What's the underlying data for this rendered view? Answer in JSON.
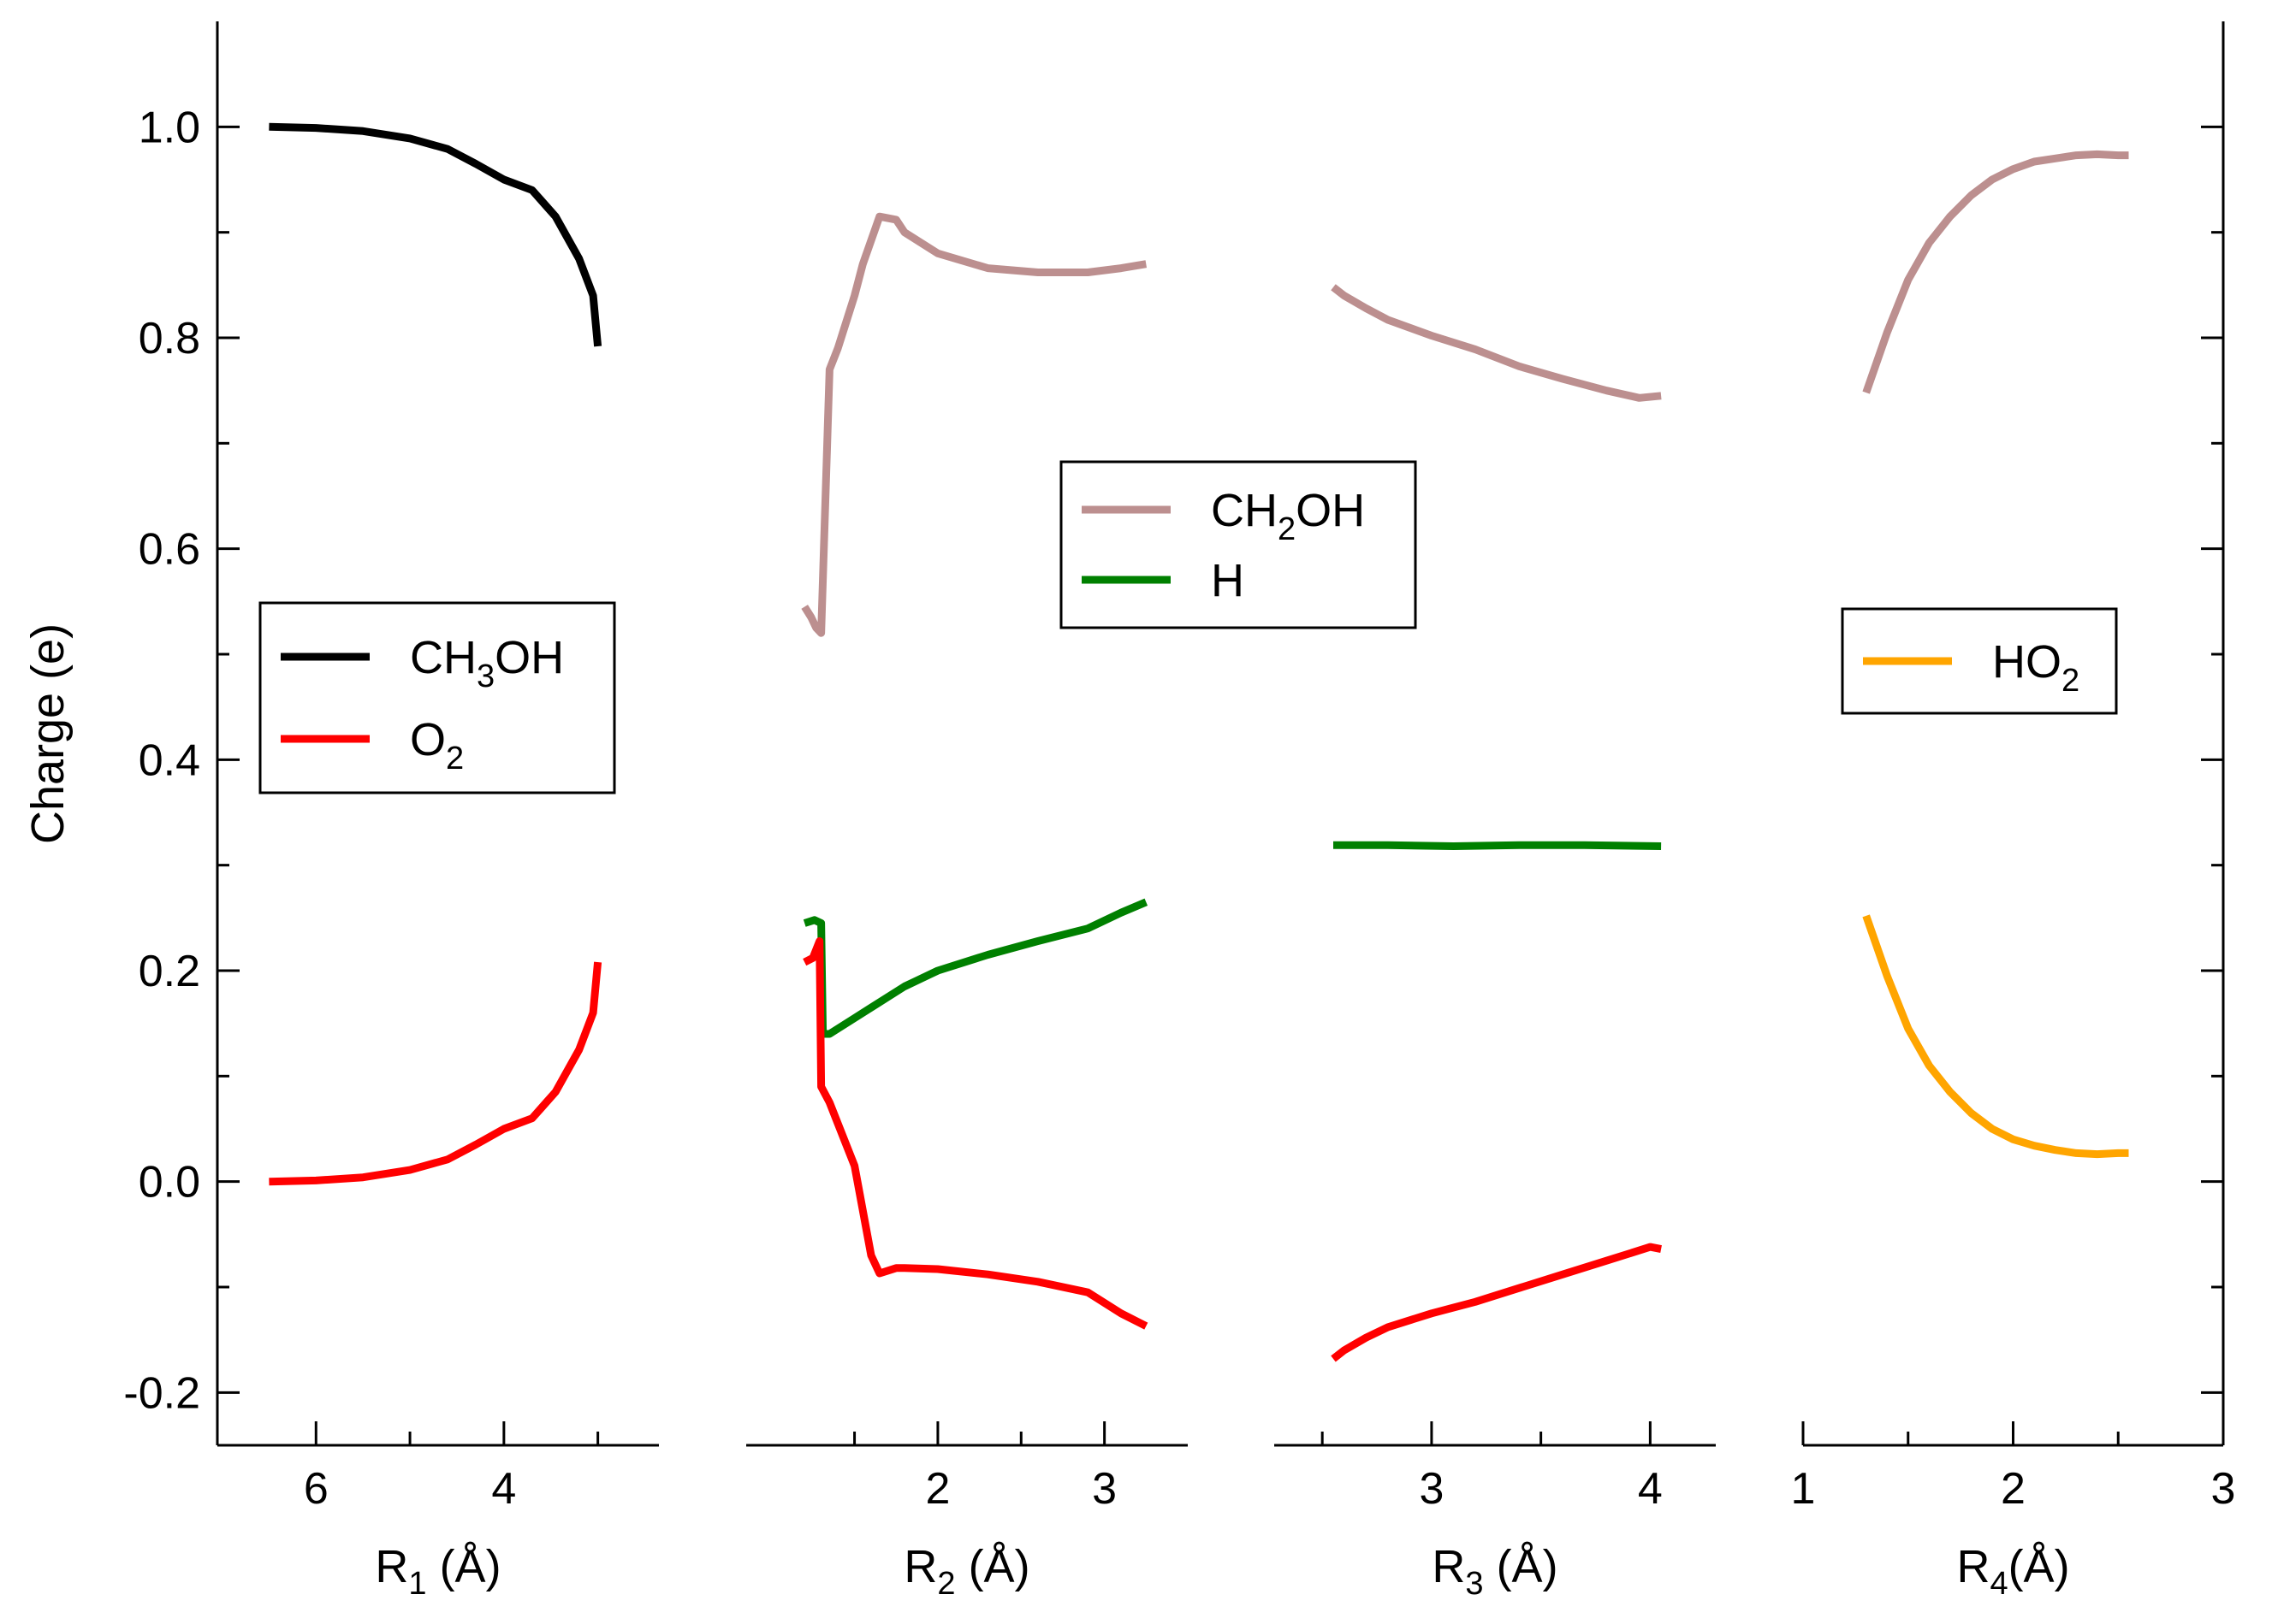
{
  "chart_data": {
    "type": "line",
    "ylabel": "Charge (e)",
    "ylim": [
      -0.25,
      1.1
    ],
    "yticks": [
      -0.2,
      0.0,
      0.2,
      0.4,
      0.6,
      0.8,
      1.0
    ],
    "ytick_labels": [
      "-0.2",
      "0.0",
      "0.2",
      "0.4",
      "0.6",
      "0.8",
      "1.0"
    ],
    "colors": {
      "CH3OH": "#000000",
      "O2": "#ff0000",
      "CH2OH": "#bc8f8f",
      "H": "#008000",
      "HO2": "#ffa500"
    },
    "panels": [
      {
        "xlabel": "R",
        "xlabel_sub": "1",
        "xlabel_unit": " (Å)",
        "xlim": [
          7.05,
          2.35
        ],
        "xticks": [
          6,
          4
        ],
        "xtick_labels": [
          "6",
          "4"
        ],
        "minor_xticks": [
          5,
          3
        ],
        "legend": {
          "position": "middle-left",
          "entries": [
            {
              "key": "CH3OH",
              "label": "CH",
              "sub": "3",
              "after": "OH"
            },
            {
              "key": "O2",
              "label": "O",
              "sub": "2",
              "after": ""
            }
          ]
        },
        "series": [
          {
            "name": "CH3OH",
            "x": [
              6.5,
              6.0,
              5.5,
              5.0,
              4.6,
              4.3,
              4.0,
              3.7,
              3.45,
              3.2,
              3.05,
              3.0
            ],
            "y": [
              1.0,
              0.999,
              0.996,
              0.989,
              0.979,
              0.965,
              0.95,
              0.94,
              0.915,
              0.875,
              0.84,
              0.792
            ]
          },
          {
            "name": "O2",
            "x": [
              6.5,
              6.0,
              5.5,
              5.0,
              4.6,
              4.3,
              4.0,
              3.7,
              3.45,
              3.2,
              3.05,
              3.0
            ],
            "y": [
              0.0,
              0.001,
              0.004,
              0.011,
              0.021,
              0.035,
              0.05,
              0.06,
              0.085,
              0.125,
              0.16,
              0.208
            ]
          }
        ]
      },
      {
        "xlabel": "R",
        "xlabel_sub": "2",
        "xlabel_unit": " (Å)",
        "xlim": [
          0.85,
          3.5
        ],
        "xticks": [
          2,
          3
        ],
        "xtick_labels": [
          "2",
          "3"
        ],
        "minor_xticks": [
          1.5,
          2.5
        ],
        "legend": {
          "position": "top-center",
          "entries": [
            {
              "key": "CH2OH",
              "label": "CH",
              "sub": "2",
              "after": "OH"
            },
            {
              "key": "H",
              "label": "H",
              "sub": "",
              "after": ""
            }
          ]
        },
        "series": [
          {
            "name": "CH2OH",
            "x": [
              1.2,
              1.24,
              1.27,
              1.3,
              1.35,
              1.4,
              1.5,
              1.55,
              1.65,
              1.75,
              1.8,
              2.0,
              2.3,
              2.6,
              2.9,
              3.1,
              3.25
            ],
            "y": [
              0.545,
              0.535,
              0.525,
              0.52,
              0.77,
              0.79,
              0.84,
              0.87,
              0.915,
              0.912,
              0.9,
              0.88,
              0.866,
              0.862,
              0.862,
              0.866,
              0.87
            ]
          },
          {
            "name": "H",
            "x": [
              1.2,
              1.26,
              1.3,
              1.31,
              1.35,
              1.5,
              1.6,
              1.8,
              2.0,
              2.3,
              2.6,
              2.9,
              3.1,
              3.25
            ],
            "y": [
              0.245,
              0.248,
              0.245,
              0.14,
              0.14,
              0.155,
              0.165,
              0.185,
              0.2,
              0.215,
              0.228,
              0.24,
              0.255,
              0.265
            ]
          },
          {
            "name": "O2",
            "x": [
              1.2,
              1.25,
              1.29,
              1.3,
              1.35,
              1.4,
              1.5,
              1.6,
              1.65,
              1.75,
              1.8,
              2.0,
              2.3,
              2.6,
              2.9,
              3.1,
              3.25
            ],
            "y": [
              0.208,
              0.212,
              0.228,
              0.09,
              0.075,
              0.055,
              0.015,
              -0.07,
              -0.087,
              -0.082,
              -0.082,
              -0.083,
              -0.088,
              -0.095,
              -0.105,
              -0.125,
              -0.137
            ]
          }
        ]
      },
      {
        "xlabel": "R",
        "xlabel_sub": "3",
        "xlabel_unit": " (Å)",
        "xlim": [
          2.28,
          4.3
        ],
        "xticks": [
          3,
          4
        ],
        "xtick_labels": [
          "3",
          "4"
        ],
        "minor_xticks": [
          2.5,
          3.5
        ],
        "legend": null,
        "series": [
          {
            "name": "CH2OH",
            "x": [
              2.55,
              2.6,
              2.7,
              2.8,
              3.0,
              3.2,
              3.4,
              3.6,
              3.8,
              3.95,
              4.05
            ],
            "y": [
              0.848,
              0.84,
              0.828,
              0.817,
              0.802,
              0.789,
              0.773,
              0.761,
              0.75,
              0.743,
              0.745
            ]
          },
          {
            "name": "H",
            "x": [
              2.55,
              2.8,
              3.1,
              3.4,
              3.7,
              4.05
            ],
            "y": [
              0.319,
              0.319,
              0.318,
              0.319,
              0.319,
              0.318
            ]
          },
          {
            "name": "O2",
            "x": [
              2.55,
              2.6,
              2.7,
              2.8,
              3.0,
              3.2,
              3.4,
              3.6,
              3.8,
              4.0,
              4.05
            ],
            "y": [
              -0.168,
              -0.16,
              -0.148,
              -0.138,
              -0.125,
              -0.114,
              -0.101,
              -0.088,
              -0.075,
              -0.062,
              -0.064
            ]
          }
        ]
      },
      {
        "xlabel": "R",
        "xlabel_sub": "4",
        "xlabel_unit": "(Å)",
        "xlim": [
          1.0,
          3.0
        ],
        "xticks": [
          1,
          2,
          3
        ],
        "xtick_labels": [
          "1",
          "2",
          "3"
        ],
        "minor_xticks": [
          1.5,
          2.5
        ],
        "legend": {
          "position": "middle-right",
          "entries": [
            {
              "key": "HO2",
              "label": "HO",
              "sub": "2",
              "after": ""
            }
          ]
        },
        "series": [
          {
            "name": "CH2OH",
            "x": [
              1.3,
              1.4,
              1.5,
              1.6,
              1.7,
              1.8,
              1.9,
              2.0,
              2.1,
              2.2,
              2.3,
              2.4,
              2.5,
              2.55
            ],
            "y": [
              0.748,
              0.805,
              0.855,
              0.89,
              0.915,
              0.935,
              0.95,
              0.96,
              0.967,
              0.97,
              0.973,
              0.974,
              0.973,
              0.973
            ]
          },
          {
            "name": "HO2",
            "x": [
              1.3,
              1.4,
              1.5,
              1.6,
              1.7,
              1.8,
              1.9,
              2.0,
              2.1,
              2.2,
              2.3,
              2.4,
              2.5,
              2.55
            ],
            "y": [
              0.252,
              0.195,
              0.145,
              0.11,
              0.085,
              0.065,
              0.05,
              0.04,
              0.034,
              0.03,
              0.027,
              0.026,
              0.027,
              0.027
            ]
          }
        ]
      }
    ]
  }
}
